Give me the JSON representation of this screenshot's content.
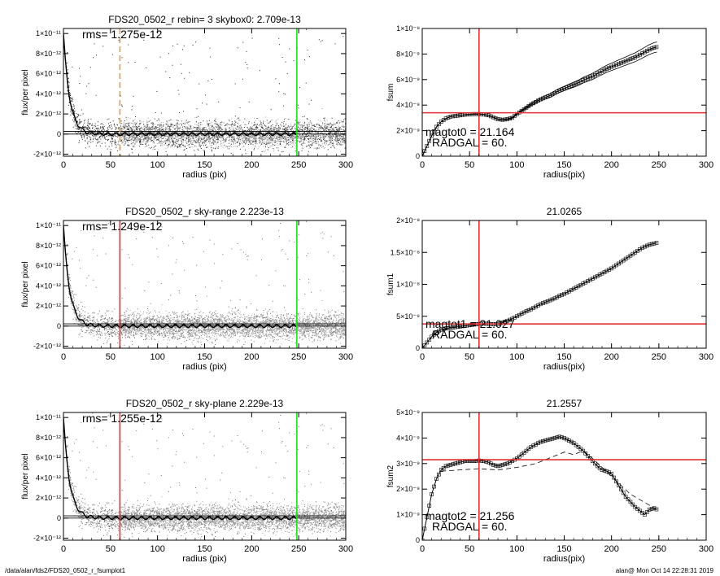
{
  "footer": {
    "left": "/data/alan/fds2/FDS20_0502_r_fsumplot1",
    "right": "alan@  Mon Oct 14 22:28:31 2019"
  },
  "colors": {
    "axis": "#000000",
    "scatter_dark": "#202020",
    "scatter_light": "#a0a0a0",
    "red": "#e03030",
    "green": "#22dd22",
    "orange": "#e0a050"
  },
  "chart_data": [
    {
      "type": "scatter",
      "title": "FDS20_0502_r rebin= 3    skybox0:  2.709e-13",
      "xlabel": "radius (pix)",
      "ylabel": "flux/per pixel",
      "xlim": [
        0,
        300
      ],
      "ylim": [
        -2.2e-12,
        1.05e-11
      ],
      "xticks": [
        0,
        50,
        100,
        150,
        200,
        250,
        300
      ],
      "yticks": [
        -2e-12,
        0,
        2e-12,
        4e-12,
        6e-12,
        8e-12,
        1e-11
      ],
      "annotation": "rms= 1.275e-12",
      "vlines": [
        {
          "x": 60,
          "color": "orange",
          "style": "dashed"
        },
        {
          "x": 248,
          "color": "green",
          "style": "solid"
        }
      ],
      "hlines": [
        0,
        2.709e-13
      ],
      "profile": {
        "peak": 1e-11,
        "scale": 6.5
      },
      "scatter_style": "dark"
    },
    {
      "type": "scatter",
      "title": "FDS20_0502_r sky-range  2.223e-13",
      "xlabel": "radius (pix)",
      "ylabel": "flux/per pixel",
      "xlim": [
        0,
        300
      ],
      "ylim": [
        -2.2e-12,
        1.05e-11
      ],
      "xticks": [
        0,
        50,
        100,
        150,
        200,
        250,
        300
      ],
      "yticks": [
        -2e-12,
        0,
        2e-12,
        4e-12,
        6e-12,
        8e-12,
        1e-11
      ],
      "annotation": "rms= 1.249e-12",
      "vlines": [
        {
          "x": 60,
          "color": "red",
          "style": "solid"
        },
        {
          "x": 248,
          "color": "green",
          "style": "solid"
        }
      ],
      "hlines": [
        0,
        2.223e-13
      ],
      "profile": {
        "peak": 1e-11,
        "scale": 6.5
      },
      "scatter_style": "light"
    },
    {
      "type": "scatter",
      "title": "FDS20_0502_r sky-plane  2.229e-13",
      "xlabel": "radius (pix)",
      "ylabel": "flux/per pixel",
      "xlim": [
        0,
        300
      ],
      "ylim": [
        -2.2e-12,
        1.05e-11
      ],
      "xticks": [
        0,
        50,
        100,
        150,
        200,
        250,
        300
      ],
      "yticks": [
        -2e-12,
        0,
        2e-12,
        4e-12,
        6e-12,
        8e-12,
        1e-11
      ],
      "annotation": "rms= 1.255e-12",
      "vlines": [
        {
          "x": 60,
          "color": "red",
          "style": "solid"
        },
        {
          "x": 248,
          "color": "green",
          "style": "solid"
        }
      ],
      "hlines": [
        0,
        2.229e-13
      ],
      "profile": {
        "peak": 1e-11,
        "scale": 6.5
      },
      "scatter_style": "light"
    },
    {
      "type": "line",
      "title": "",
      "xlabel": "radius(pix)",
      "ylabel": "fsum",
      "xlim": [
        0,
        300
      ],
      "ylim": [
        0,
        1e-08
      ],
      "xticks": [
        0,
        50,
        100,
        150,
        200,
        250,
        300
      ],
      "yticks": [
        0,
        2e-09,
        4e-09,
        6e-09,
        8e-09,
        1e-08
      ],
      "annotations": [
        "magtot0 =  21.164",
        "RADGAL =     60."
      ],
      "vline": 60,
      "hline": 3.4e-09,
      "curve_x": [
        0,
        5,
        10,
        15,
        20,
        25,
        30,
        35,
        40,
        45,
        50,
        55,
        60,
        65,
        70,
        75,
        80,
        85,
        90,
        95,
        100,
        105,
        110,
        115,
        120,
        125,
        130,
        135,
        140,
        145,
        150,
        155,
        160,
        165,
        170,
        175,
        180,
        185,
        190,
        195,
        200,
        205,
        210,
        215,
        220,
        225,
        230,
        235,
        240,
        245,
        248
      ],
      "curve_y": [
        0,
        8e-10,
        1.6e-09,
        2.3e-09,
        2.7e-09,
        2.95e-09,
        3.1e-09,
        3.15e-09,
        3.2e-09,
        3.25e-09,
        3.28e-09,
        3.3e-09,
        3.3e-09,
        3.28e-09,
        3.2e-09,
        3.05e-09,
        2.9e-09,
        2.85e-09,
        2.9e-09,
        3e-09,
        3.3e-09,
        3.55e-09,
        3.8e-09,
        4.05e-09,
        4.25e-09,
        4.45e-09,
        4.6e-09,
        4.75e-09,
        4.95e-09,
        5.15e-09,
        5.3e-09,
        5.45e-09,
        5.6e-09,
        5.75e-09,
        5.95e-09,
        6.1e-09,
        6.25e-09,
        6.45e-09,
        6.65e-09,
        6.85e-09,
        7e-09,
        7.15e-09,
        7.3e-09,
        7.45e-09,
        7.6e-09,
        7.75e-09,
        7.95e-09,
        8.15e-09,
        8.35e-09,
        8.5e-09,
        8.55e-09
      ],
      "band": 4e-10,
      "band_start": 75
    },
    {
      "type": "line",
      "title": "21.0265",
      "xlabel": "radius(pix)",
      "ylabel": "fsum1",
      "xlim": [
        0,
        300
      ],
      "ylim": [
        0,
        2e-08
      ],
      "xticks": [
        0,
        50,
        100,
        150,
        200,
        250,
        300
      ],
      "yticks": [
        0,
        5e-09,
        1e-08,
        1.5e-08,
        2e-08
      ],
      "annotations": [
        "magtot1 =  21.027",
        "RADGAL =     60."
      ],
      "vline": 60,
      "hline": 3.8e-09,
      "curve_x": [
        0,
        5,
        10,
        15,
        20,
        25,
        30,
        35,
        40,
        45,
        50,
        55,
        60,
        65,
        70,
        75,
        80,
        85,
        90,
        95,
        100,
        105,
        110,
        115,
        120,
        125,
        130,
        135,
        140,
        145,
        150,
        155,
        160,
        165,
        170,
        175,
        180,
        185,
        190,
        195,
        200,
        205,
        210,
        215,
        220,
        225,
        230,
        235,
        240,
        245,
        248
      ],
      "curve_y": [
        0,
        9e-10,
        1.8e-09,
        2.5e-09,
        2.9e-09,
        3.1e-09,
        3.2e-09,
        3.3e-09,
        3.4e-09,
        3.5e-09,
        3.6e-09,
        3.7e-09,
        3.8e-09,
        3.85e-09,
        3.8e-09,
        3.75e-09,
        3.8e-09,
        4e-09,
        4.3e-09,
        4.6e-09,
        5e-09,
        5.4e-09,
        5.8e-09,
        6.1e-09,
        6.5e-09,
        6.9e-09,
        7.2e-09,
        7.5e-09,
        7.8e-09,
        8.2e-09,
        8.5e-09,
        8.9e-09,
        9.3e-09,
        9.7e-09,
        1.01e-08,
        1.05e-08,
        1.09e-08,
        1.13e-08,
        1.17e-08,
        1.21e-08,
        1.25e-08,
        1.3e-08,
        1.35e-08,
        1.4e-08,
        1.45e-08,
        1.5e-08,
        1.55e-08,
        1.59e-08,
        1.62e-08,
        1.64e-08,
        1.65e-08
      ],
      "band": 0,
      "band_start": 0
    },
    {
      "type": "line",
      "title": "21.2557",
      "xlabel": "radius(pix)",
      "ylabel": "fsum2",
      "xlim": [
        0,
        300
      ],
      "ylim": [
        0,
        5e-09
      ],
      "xticks": [
        0,
        50,
        100,
        150,
        200,
        250,
        300
      ],
      "yticks": [
        0,
        1e-09,
        2e-09,
        3e-09,
        4e-09,
        5e-09
      ],
      "annotations": [
        "magtot2 =  21.256",
        "RADGAL =     60."
      ],
      "vline": 60,
      "hline": 3.15e-09,
      "curve_x": [
        0,
        5,
        10,
        15,
        20,
        25,
        30,
        35,
        40,
        45,
        50,
        55,
        60,
        65,
        70,
        75,
        80,
        85,
        90,
        95,
        100,
        105,
        110,
        115,
        120,
        125,
        130,
        135,
        140,
        145,
        150,
        155,
        160,
        165,
        170,
        175,
        180,
        185,
        190,
        195,
        200,
        205,
        210,
        215,
        220,
        225,
        230,
        235,
        240,
        245,
        248
      ],
      "curve_y": [
        0,
        9e-10,
        1.8e-09,
        2.4e-09,
        2.75e-09,
        2.9e-09,
        2.95e-09,
        3e-09,
        3.05e-09,
        3.1e-09,
        3.1e-09,
        3.1e-09,
        3.12e-09,
        3.1e-09,
        3.05e-09,
        2.95e-09,
        2.9e-09,
        2.95e-09,
        3e-09,
        3.1e-09,
        3.2e-09,
        3.35e-09,
        3.5e-09,
        3.65e-09,
        3.75e-09,
        3.85e-09,
        3.9e-09,
        3.95e-09,
        4e-09,
        4.05e-09,
        4e-09,
        3.9e-09,
        3.8e-09,
        3.65e-09,
        3.5e-09,
        3.3e-09,
        3.1e-09,
        2.9e-09,
        2.75e-09,
        2.7e-09,
        2.6e-09,
        2.3e-09,
        2e-09,
        1.7e-09,
        1.5e-09,
        1.3e-09,
        1.15e-09,
        1e-09,
        1.2e-09,
        1.25e-09,
        1.2e-09
      ],
      "dashed_x": [
        20,
        40,
        60,
        80,
        100,
        120,
        140,
        150,
        160,
        170,
        180,
        200,
        220,
        248
      ],
      "dashed_y": [
        2.7e-09,
        2.75e-09,
        2.8e-09,
        2.75e-09,
        2.85e-09,
        3e-09,
        3.3e-09,
        3.45e-09,
        3.35e-09,
        3.5e-09,
        3.2e-09,
        2.5e-09,
        1.8e-09,
        1.2e-09
      ],
      "band": 0,
      "band_start": 0
    }
  ]
}
